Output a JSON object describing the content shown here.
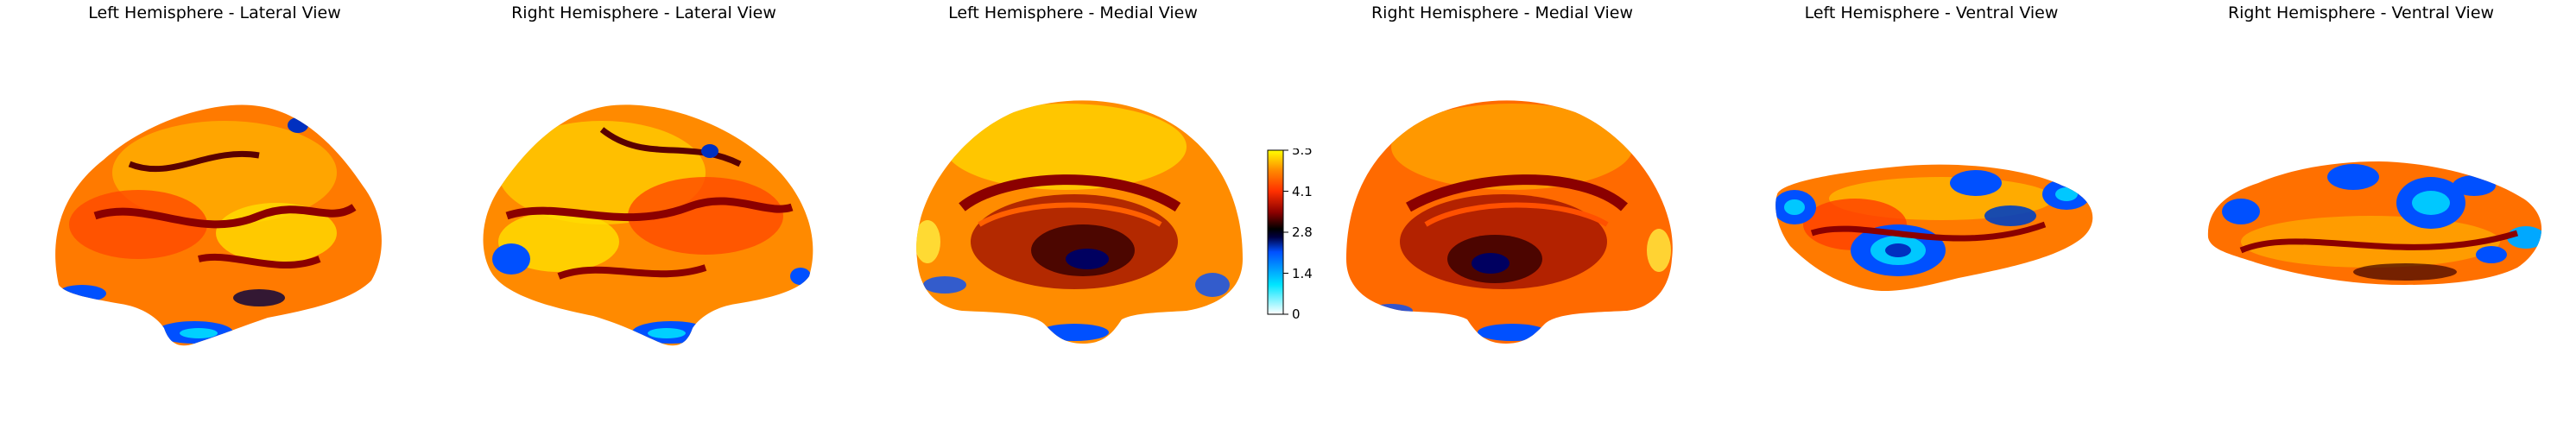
{
  "panels": [
    {
      "title": "Left Hemisphere - Lateral View",
      "view": "lateral",
      "hemisphere": "left"
    },
    {
      "title": "Right Hemisphere - Lateral View",
      "view": "lateral",
      "hemisphere": "right"
    },
    {
      "title": "Left Hemisphere - Medial View",
      "view": "medial",
      "hemisphere": "left"
    },
    {
      "title": "Right Hemisphere - Medial View",
      "view": "medial",
      "hemisphere": "right"
    },
    {
      "title": "Left Hemisphere - Ventral View",
      "view": "ventral",
      "hemisphere": "left"
    },
    {
      "title": "Right Hemisphere - Ventral View",
      "view": "ventral",
      "hemisphere": "right"
    }
  ],
  "colorbar": {
    "ticks": [
      "5.5",
      "4.1",
      "2.8",
      "1.4",
      "0"
    ],
    "colormap": [
      "#ffffff",
      "#00e5ff",
      "#0050ff",
      "#000040",
      "#000000",
      "#8b0000",
      "#ff3000",
      "#ff8c00",
      "#ffff00"
    ]
  }
}
